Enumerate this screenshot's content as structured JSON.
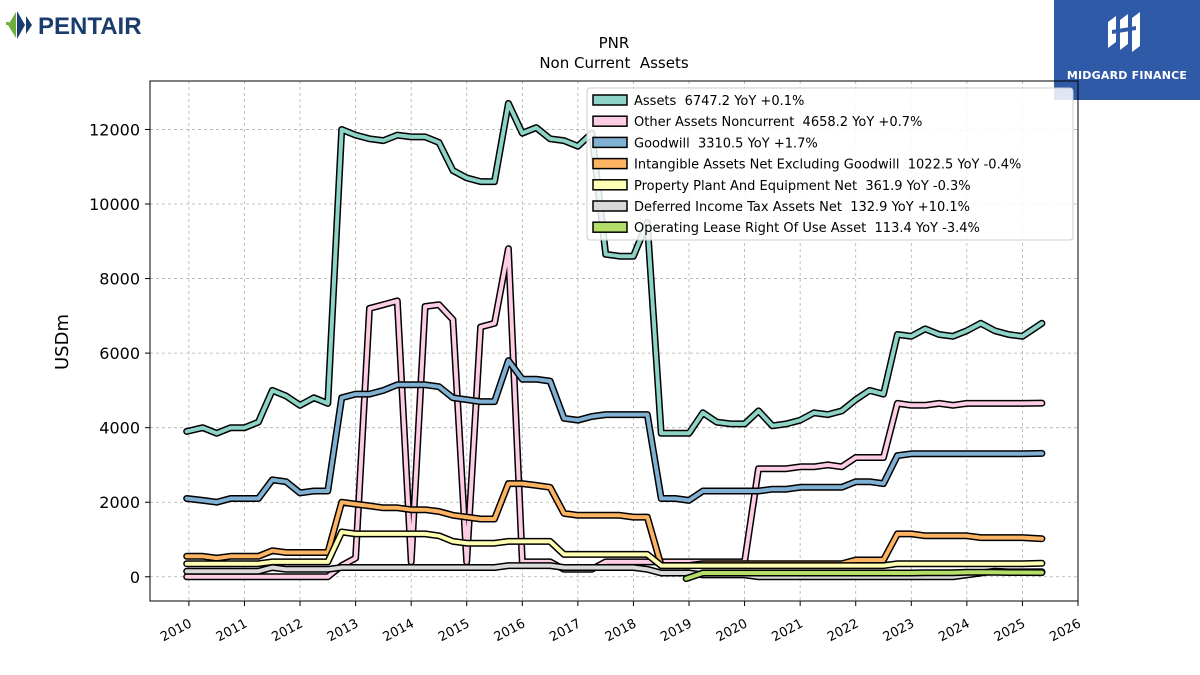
{
  "brand_left": {
    "name": "PENTAIR",
    "icon": "pentair-diamond-logo-icon",
    "color": "#1b3d6e",
    "accent": "#6fae3f"
  },
  "brand_right": {
    "name": "MIDGARD FINANCE",
    "icon": "midgard-logo-icon",
    "background": "#2f5aa8"
  },
  "chart_data": {
    "type": "line",
    "title": "PNR",
    "subtitle": "Non Current  Assets",
    "ylabel": "USDm",
    "xlabel": "",
    "xlim": [
      2009.3,
      2026.0
    ],
    "ylim": [
      -650,
      13300
    ],
    "x_ticks": [
      "2010",
      "2011",
      "2012",
      "2013",
      "2014",
      "2015",
      "2016",
      "2017",
      "2018",
      "2019",
      "2020",
      "2021",
      "2022",
      "2023",
      "2024",
      "2025",
      "2026"
    ],
    "y_ticks": [
      "0",
      "2000",
      "4000",
      "6000",
      "8000",
      "10000",
      "12000"
    ],
    "grid": true,
    "legend_position": "top-right",
    "series": [
      {
        "name": "Assets",
        "label": "Assets  6747.2 YoY +0.1%",
        "color": "#8dd3c7",
        "x": [
          2009.96,
          2010.25,
          2010.5,
          2010.75,
          2011.0,
          2011.25,
          2011.5,
          2011.75,
          2012.0,
          2012.25,
          2012.5,
          2012.75,
          2013.0,
          2013.25,
          2013.5,
          2013.75,
          2014.0,
          2014.25,
          2014.5,
          2014.75,
          2015.0,
          2015.25,
          2015.5,
          2015.75,
          2016.0,
          2016.25,
          2016.5,
          2016.75,
          2017.0,
          2017.25,
          2017.5,
          2017.75,
          2018.0,
          2018.25,
          2018.5,
          2018.75,
          2019.0,
          2019.25,
          2019.5,
          2019.75,
          2020.0,
          2020.25,
          2020.5,
          2020.75,
          2021.0,
          2021.25,
          2021.5,
          2021.75,
          2022.0,
          2022.25,
          2022.5,
          2022.75,
          2023.0,
          2023.25,
          2023.5,
          2023.75,
          2024.0,
          2024.25,
          2024.5,
          2024.75,
          2025.0,
          2025.35
        ],
        "y": [
          3900,
          4000,
          3850,
          4000,
          4000,
          4150,
          5000,
          4850,
          4600,
          4800,
          4650,
          12000,
          11850,
          11750,
          11700,
          11850,
          11800,
          11800,
          11650,
          10900,
          10700,
          10600,
          10600,
          12700,
          11900,
          12050,
          11750,
          11700,
          11550,
          11900,
          8650,
          8600,
          8600,
          9500,
          3850,
          3850,
          3850,
          4400,
          4150,
          4100,
          4100,
          4450,
          4050,
          4100,
          4200,
          4400,
          4350,
          4450,
          4750,
          5000,
          4900,
          6500,
          6450,
          6650,
          6500,
          6450,
          6600,
          6800,
          6600,
          6500,
          6450,
          6800
        ]
      },
      {
        "name": "Other Assets Noncurrent",
        "label": "Other Assets Noncurrent  4658.2 YoY +0.7%",
        "color": "#fccde5",
        "x": [
          2009.96,
          2010.25,
          2010.5,
          2010.75,
          2011.0,
          2011.25,
          2011.5,
          2011.75,
          2012.0,
          2012.25,
          2012.5,
          2012.75,
          2013.0,
          2013.25,
          2013.5,
          2013.75,
          2014.0,
          2014.25,
          2014.5,
          2014.75,
          2015.0,
          2015.25,
          2015.5,
          2015.75,
          2016.0,
          2016.25,
          2016.5,
          2016.75,
          2017.0,
          2017.25,
          2017.5,
          2017.75,
          2018.0,
          2018.25,
          2018.5,
          2018.75,
          2019.0,
          2019.25,
          2019.5,
          2019.75,
          2020.0,
          2020.25,
          2020.5,
          2020.75,
          2021.0,
          2021.25,
          2021.5,
          2021.75,
          2022.0,
          2022.25,
          2022.5,
          2022.75,
          2023.0,
          2023.25,
          2023.5,
          2023.75,
          2024.0,
          2024.25,
          2024.5,
          2024.75,
          2025.0,
          2025.35
        ],
        "y": [
          0,
          0,
          0,
          0,
          0,
          0,
          0,
          0,
          0,
          0,
          0,
          300,
          500,
          7200,
          7300,
          7400,
          400,
          7250,
          7300,
          6900,
          400,
          6700,
          6800,
          8800,
          400,
          400,
          400,
          200,
          200,
          200,
          400,
          400,
          400,
          400,
          400,
          400,
          400,
          400,
          400,
          400,
          400,
          2900,
          2900,
          2900,
          2950,
          2950,
          3000,
          2950,
          3200,
          3200,
          3200,
          4650,
          4600,
          4600,
          4650,
          4600,
          4650,
          4650,
          4650,
          4650,
          4650,
          4658
        ]
      },
      {
        "name": "Goodwill",
        "label": "Goodwill  3310.5 YoY +1.7%",
        "color": "#80b1d3",
        "x": [
          2009.96,
          2010.25,
          2010.5,
          2010.75,
          2011.0,
          2011.25,
          2011.5,
          2011.75,
          2012.0,
          2012.25,
          2012.5,
          2012.75,
          2013.0,
          2013.25,
          2013.5,
          2013.75,
          2014.0,
          2014.25,
          2014.5,
          2014.75,
          2015.0,
          2015.25,
          2015.5,
          2015.75,
          2016.0,
          2016.25,
          2016.5,
          2016.75,
          2017.0,
          2017.25,
          2017.5,
          2017.75,
          2018.0,
          2018.25,
          2018.5,
          2018.75,
          2019.0,
          2019.25,
          2019.5,
          2019.75,
          2020.0,
          2020.25,
          2020.5,
          2020.75,
          2021.0,
          2021.25,
          2021.5,
          2021.75,
          2022.0,
          2022.25,
          2022.5,
          2022.75,
          2023.0,
          2023.25,
          2023.5,
          2023.75,
          2024.0,
          2024.25,
          2024.5,
          2024.75,
          2025.0,
          2025.35
        ],
        "y": [
          2100,
          2050,
          2000,
          2100,
          2100,
          2100,
          2600,
          2550,
          2250,
          2300,
          2300,
          4800,
          4900,
          4900,
          5000,
          5150,
          5150,
          5150,
          5100,
          4800,
          4750,
          4700,
          4700,
          5800,
          5300,
          5300,
          5250,
          4250,
          4200,
          4300,
          4350,
          4350,
          4350,
          4350,
          2100,
          2100,
          2050,
          2300,
          2300,
          2300,
          2300,
          2300,
          2350,
          2350,
          2400,
          2400,
          2400,
          2400,
          2550,
          2550,
          2500,
          3250,
          3300,
          3300,
          3300,
          3300,
          3300,
          3300,
          3300,
          3300,
          3300,
          3310
        ]
      },
      {
        "name": "Intangible Assets Net Excluding Goodwill",
        "label": "Intangible Assets Net Excluding Goodwill  1022.5 YoY -0.4%",
        "color": "#fdb462",
        "x": [
          2009.96,
          2010.25,
          2010.5,
          2010.75,
          2011.0,
          2011.25,
          2011.5,
          2011.75,
          2012.0,
          2012.25,
          2012.5,
          2012.75,
          2013.0,
          2013.25,
          2013.5,
          2013.75,
          2014.0,
          2014.25,
          2014.5,
          2014.75,
          2015.0,
          2015.25,
          2015.5,
          2015.75,
          2016.0,
          2016.25,
          2016.5,
          2016.75,
          2017.0,
          2017.25,
          2017.5,
          2017.75,
          2018.0,
          2018.25,
          2018.5,
          2018.75,
          2019.0,
          2019.25,
          2019.5,
          2019.75,
          2020.0,
          2020.25,
          2020.5,
          2020.75,
          2021.0,
          2021.25,
          2021.5,
          2021.75,
          2022.0,
          2022.25,
          2022.5,
          2022.75,
          2023.0,
          2023.25,
          2023.5,
          2023.75,
          2024.0,
          2024.25,
          2024.5,
          2024.75,
          2025.0,
          2025.35
        ],
        "y": [
          550,
          550,
          500,
          550,
          550,
          550,
          700,
          650,
          650,
          650,
          650,
          2000,
          1950,
          1900,
          1850,
          1850,
          1800,
          1800,
          1750,
          1650,
          1600,
          1550,
          1550,
          2500,
          2500,
          2450,
          2400,
          1700,
          1650,
          1650,
          1650,
          1650,
          1600,
          1600,
          300,
          300,
          300,
          350,
          350,
          350,
          350,
          350,
          350,
          350,
          350,
          350,
          350,
          350,
          450,
          450,
          450,
          1150,
          1150,
          1100,
          1100,
          1100,
          1100,
          1050,
          1050,
          1050,
          1050,
          1022
        ]
      },
      {
        "name": "Property Plant And Equipment Net",
        "label": "Property Plant And Equipment Net  361.9 YoY -0.3%",
        "color": "#ffffb3",
        "x": [
          2009.96,
          2010.25,
          2010.5,
          2010.75,
          2011.0,
          2011.25,
          2011.5,
          2011.75,
          2012.0,
          2012.25,
          2012.5,
          2012.75,
          2013.0,
          2013.25,
          2013.5,
          2013.75,
          2014.0,
          2014.25,
          2014.5,
          2014.75,
          2015.0,
          2015.25,
          2015.5,
          2015.75,
          2016.0,
          2016.25,
          2016.5,
          2016.75,
          2017.0,
          2017.25,
          2017.5,
          2017.75,
          2018.0,
          2018.25,
          2018.5,
          2018.75,
          2019.0,
          2019.25,
          2019.5,
          2019.75,
          2020.0,
          2020.25,
          2020.5,
          2020.75,
          2021.0,
          2021.25,
          2021.5,
          2021.75,
          2022.0,
          2022.25,
          2022.5,
          2022.75,
          2023.0,
          2023.25,
          2023.5,
          2023.75,
          2024.0,
          2024.25,
          2024.5,
          2024.75,
          2025.0,
          2025.35
        ],
        "y": [
          350,
          350,
          350,
          350,
          350,
          350,
          400,
          400,
          400,
          400,
          400,
          1200,
          1150,
          1150,
          1150,
          1150,
          1150,
          1150,
          1100,
          950,
          900,
          900,
          900,
          950,
          950,
          950,
          950,
          600,
          600,
          600,
          600,
          600,
          600,
          600,
          300,
          300,
          300,
          300,
          300,
          300,
          300,
          300,
          300,
          300,
          300,
          300,
          300,
          300,
          300,
          300,
          300,
          350,
          350,
          350,
          350,
          350,
          350,
          350,
          350,
          350,
          350,
          362
        ]
      },
      {
        "name": "Deferred Income Tax Assets Net",
        "label": "Deferred Income Tax Assets Net  132.9 YoY +10.1%",
        "color": "#d9d9d9",
        "x": [
          2009.96,
          2010.25,
          2010.5,
          2010.75,
          2011.0,
          2011.25,
          2011.5,
          2011.75,
          2012.0,
          2012.25,
          2012.5,
          2012.75,
          2013.0,
          2013.25,
          2013.5,
          2013.75,
          2014.0,
          2014.25,
          2014.5,
          2014.75,
          2015.0,
          2015.25,
          2015.5,
          2015.75,
          2016.0,
          2016.25,
          2016.5,
          2016.75,
          2017.0,
          2017.25,
          2017.5,
          2017.75,
          2018.0,
          2018.25,
          2018.5,
          2018.75,
          2019.0,
          2019.25,
          2019.5,
          2019.75,
          2020.0,
          2020.25,
          2020.5,
          2020.75,
          2021.0,
          2021.25,
          2021.5,
          2021.75,
          2022.0,
          2022.25,
          2022.5,
          2022.75,
          2023.0,
          2023.25,
          2023.5,
          2023.75,
          2024.0,
          2024.25,
          2024.5,
          2024.75,
          2025.0,
          2025.35
        ],
        "y": [
          150,
          150,
          150,
          150,
          150,
          150,
          250,
          200,
          200,
          200,
          200,
          250,
          250,
          250,
          250,
          250,
          250,
          250,
          250,
          250,
          250,
          250,
          250,
          300,
          300,
          300,
          300,
          250,
          250,
          250,
          250,
          250,
          250,
          200,
          100,
          100,
          100,
          50,
          50,
          50,
          50,
          0,
          0,
          0,
          0,
          0,
          0,
          0,
          0,
          0,
          0,
          0,
          0,
          0,
          0,
          0,
          50,
          100,
          150,
          130,
          130,
          133
        ]
      },
      {
        "name": "Operating Lease Right Of Use Asset",
        "label": "Operating Lease Right Of Use Asset  113.4 YoY -3.4%",
        "color": "#b3de69",
        "x": [
          2018.95,
          2019.25,
          2019.5,
          2019.75,
          2020.0,
          2020.25,
          2020.5,
          2020.75,
          2021.0,
          2021.25,
          2021.5,
          2021.75,
          2022.0,
          2022.25,
          2022.5,
          2022.75,
          2023.0,
          2023.25,
          2023.5,
          2023.75,
          2024.0,
          2024.25,
          2024.5,
          2024.75,
          2025.0,
          2025.35
        ],
        "y": [
          -50,
          100,
          100,
          100,
          100,
          100,
          100,
          100,
          100,
          100,
          100,
          100,
          100,
          100,
          100,
          100,
          100,
          110,
          110,
          110,
          120,
          120,
          120,
          115,
          115,
          113
        ]
      }
    ]
  }
}
